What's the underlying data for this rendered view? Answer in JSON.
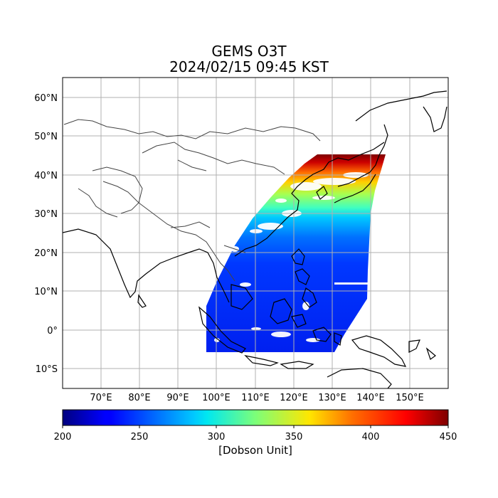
{
  "map": {
    "title": "GEMS O3T",
    "subtitle": "2024/02/15 09:45 KST",
    "lon_labels": [
      "70°E",
      "80°E",
      "90°E",
      "100°E",
      "110°E",
      "120°E",
      "130°E",
      "140°E",
      "150°E"
    ],
    "lat_labels": [
      "60°N",
      "50°N",
      "40°N",
      "30°N",
      "20°N",
      "10°N",
      "0°",
      "10°S"
    ],
    "extent": {
      "lon": [
        60,
        160
      ],
      "lat": [
        -15,
        65
      ]
    },
    "gridlines": true
  },
  "colorbar": {
    "colormap": "jet",
    "ticks": [
      "200",
      "250",
      "300",
      "350",
      "400",
      "450"
    ],
    "range": [
      200,
      450
    ],
    "label": "[Dobson Unit]"
  }
}
